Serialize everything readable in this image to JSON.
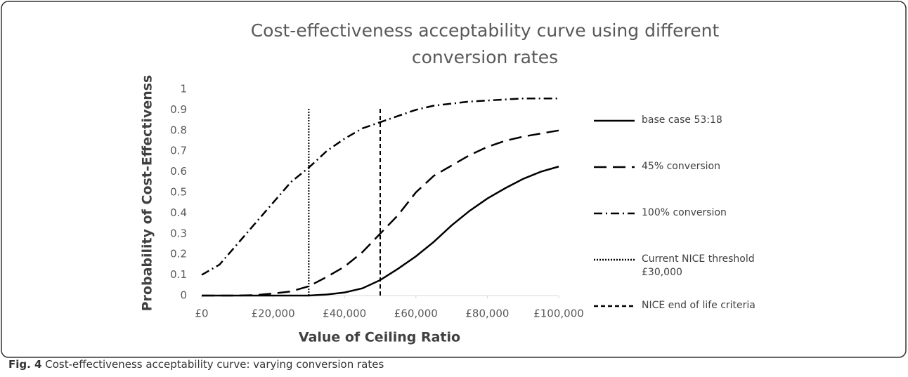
{
  "chart_data": {
    "type": "line",
    "title": "Cost-effectiveness acceptability curve using different conversion rates",
    "xlabel": "Value of Ceiling Ratio",
    "ylabel": "Probability of Cost-Effectivenss",
    "x": [
      0,
      5000,
      10000,
      15000,
      20000,
      25000,
      30000,
      35000,
      40000,
      45000,
      50000,
      55000,
      60000,
      65000,
      70000,
      75000,
      80000,
      85000,
      90000,
      95000,
      100000
    ],
    "series": [
      {
        "name": "base case 53:18",
        "color": "#000000",
        "dash": "solid",
        "values": [
          0,
          0,
          0,
          0,
          0,
          0,
          0,
          0.005,
          0.015,
          0.035,
          0.075,
          0.13,
          0.19,
          0.26,
          0.34,
          0.41,
          0.47,
          0.52,
          0.565,
          0.6,
          0.625
        ]
      },
      {
        "name": "45% conversion",
        "color": "#000000",
        "dash": "long-dash",
        "values": [
          0,
          0,
          0,
          0.002,
          0.01,
          0.02,
          0.045,
          0.09,
          0.14,
          0.21,
          0.3,
          0.39,
          0.5,
          0.58,
          0.63,
          0.68,
          0.72,
          0.75,
          0.77,
          0.785,
          0.8
        ]
      },
      {
        "name": "100% conversion",
        "color": "#000000",
        "dash": "dash-dot",
        "values": [
          0.1,
          0.15,
          0.25,
          0.35,
          0.45,
          0.55,
          0.62,
          0.7,
          0.76,
          0.81,
          0.84,
          0.87,
          0.9,
          0.92,
          0.93,
          0.94,
          0.945,
          0.95,
          0.955,
          0.955,
          0.955
        ]
      }
    ],
    "reference_lines": [
      {
        "name": "Current NICE threshold £30,000",
        "x": 30000,
        "color": "#000000",
        "dash": "dotted"
      },
      {
        "name": "NICE end of life criteria",
        "x": 50000,
        "color": "#000000",
        "dash": "dashed"
      }
    ],
    "xlim": [
      0,
      100000
    ],
    "xticks": [
      {
        "value": 0,
        "label": "£0"
      },
      {
        "value": 20000,
        "label": "£20,000"
      },
      {
        "value": 40000,
        "label": "£40,000"
      },
      {
        "value": 60000,
        "label": "£60,000"
      },
      {
        "value": 80000,
        "label": "£80,000"
      },
      {
        "value": 100000,
        "label": "£100,000"
      }
    ],
    "ylim": [
      0,
      1
    ],
    "yticks": [
      0,
      0.1,
      0.2,
      0.3,
      0.4,
      0.5,
      0.6,
      0.7,
      0.8,
      0.9,
      1
    ],
    "grid": false,
    "legend": "right",
    "caption": {
      "label": "Fig. 4",
      "text": "Cost-effectiveness acceptability curve: varying conversion rates"
    }
  }
}
